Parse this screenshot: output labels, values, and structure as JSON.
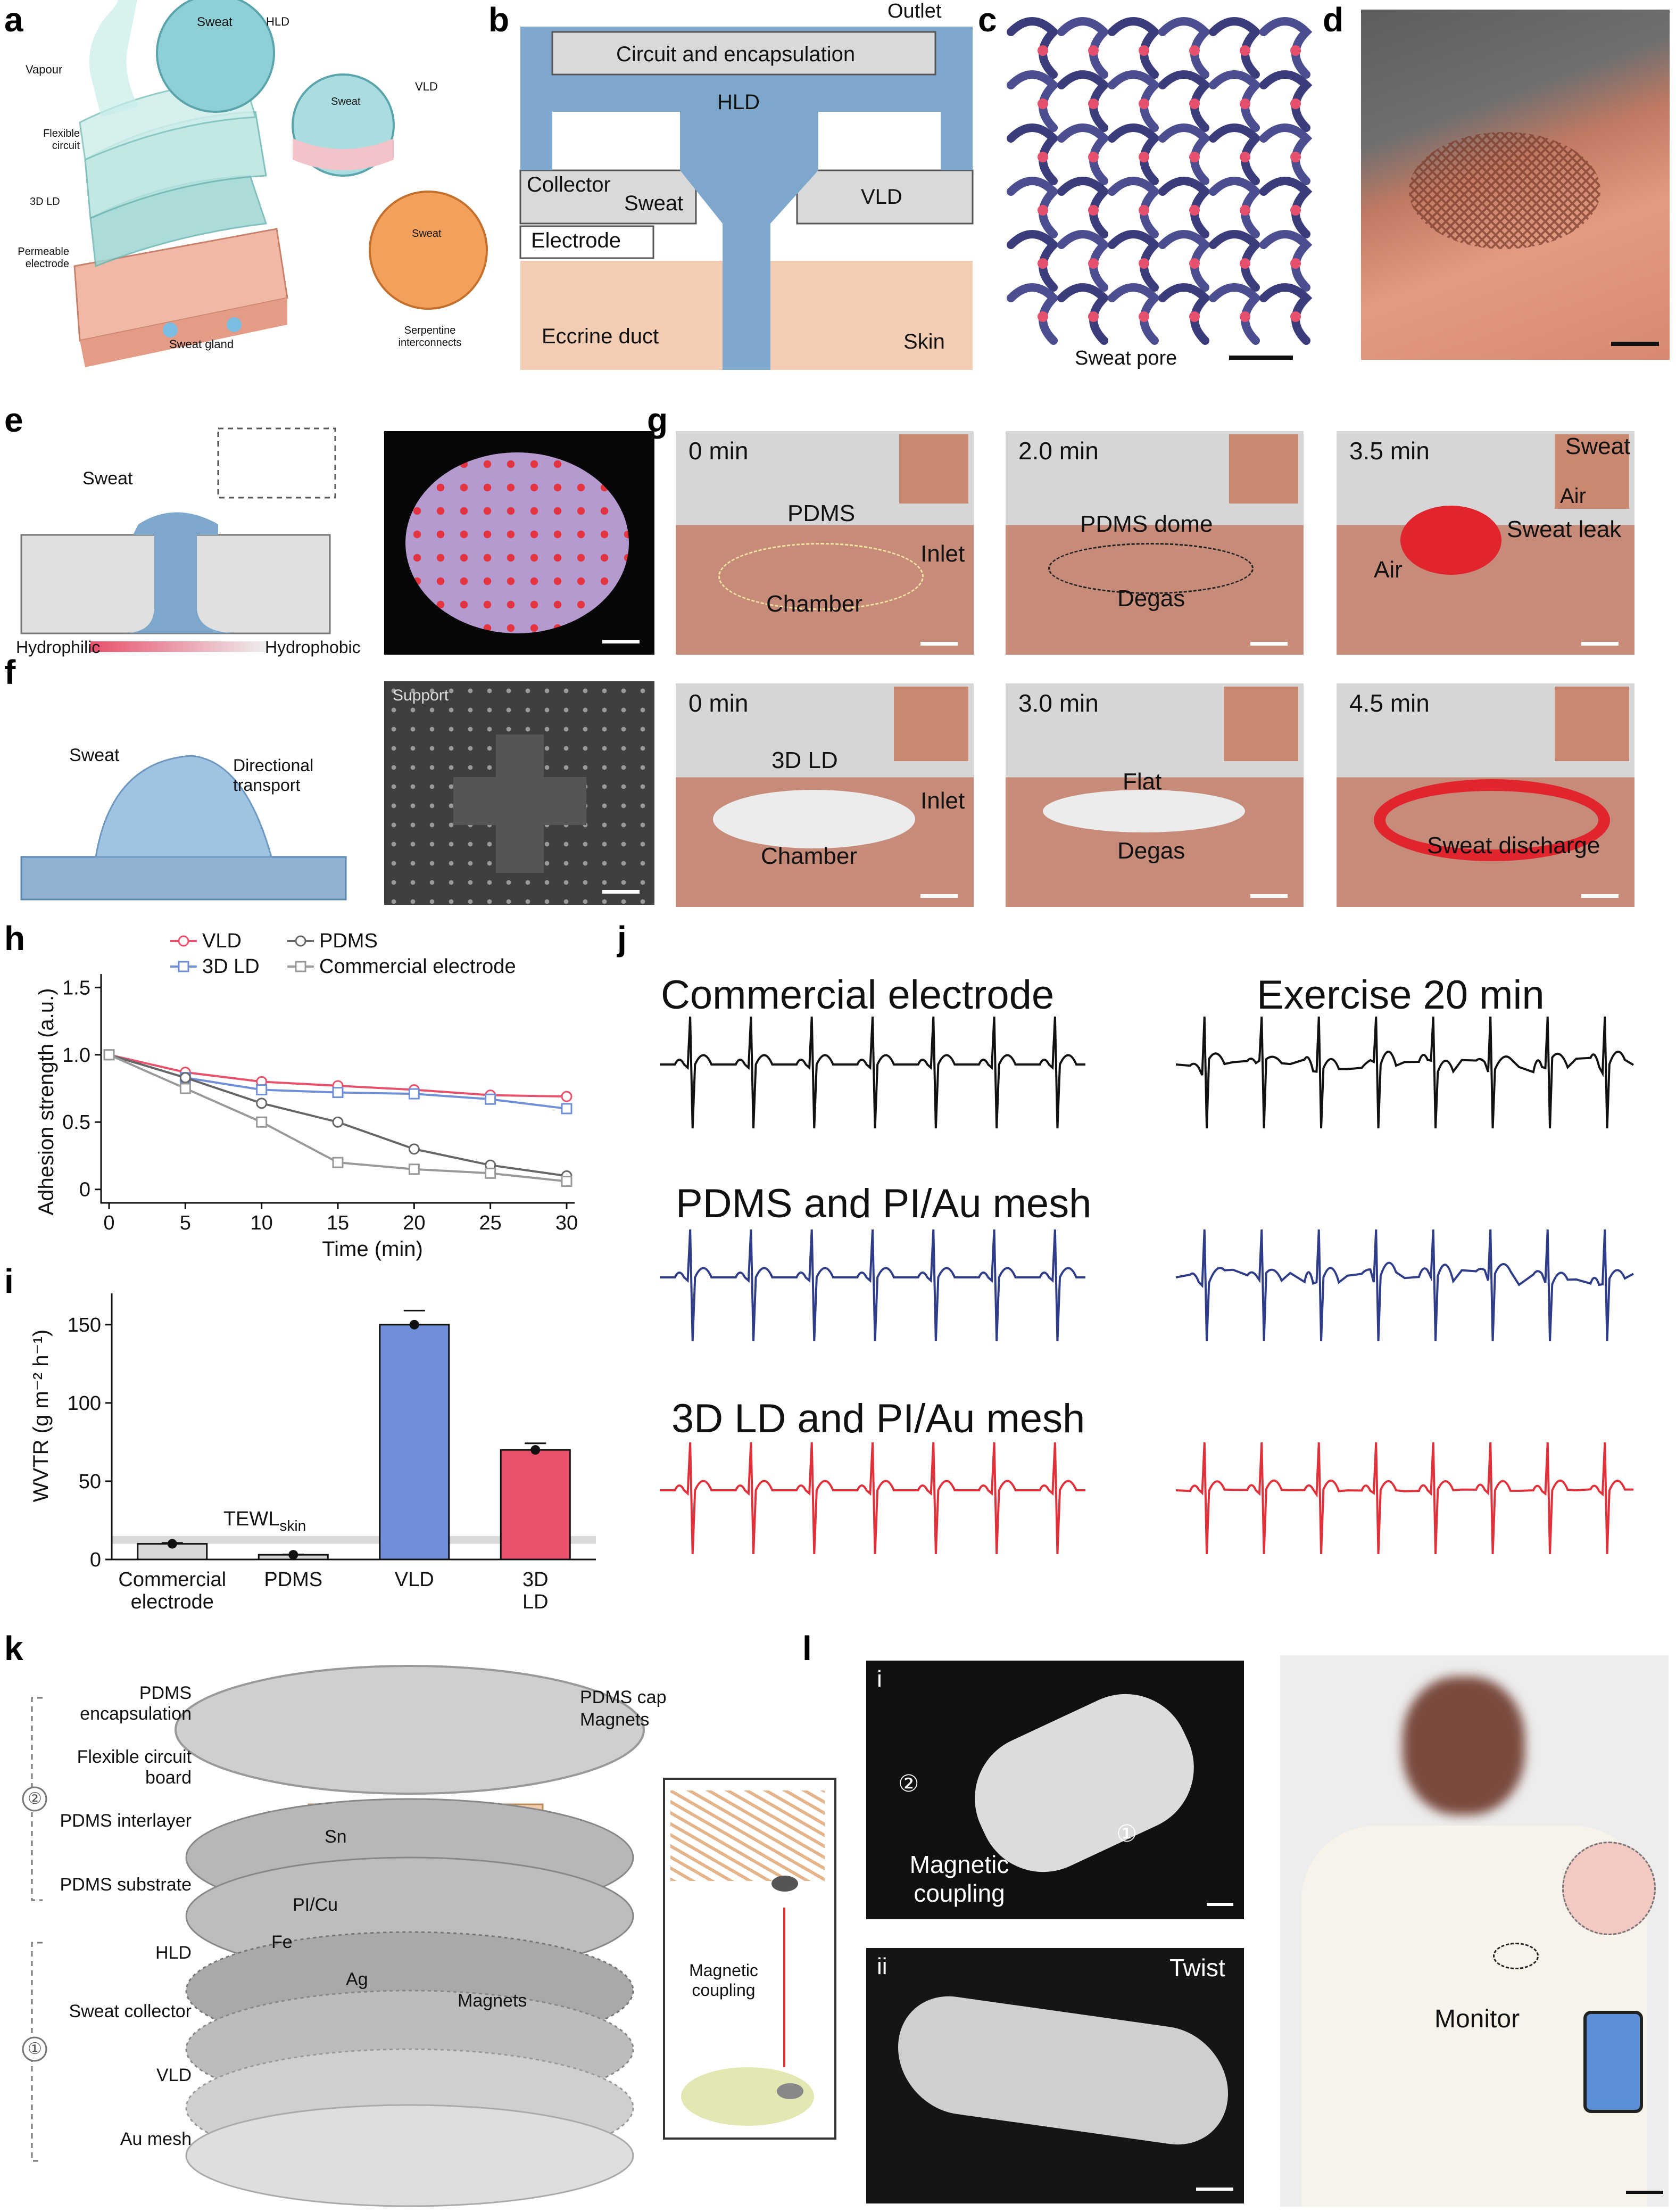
{
  "panel_letters": {
    "a": "a",
    "b": "b",
    "c": "c",
    "d": "d",
    "e": "e",
    "f": "f",
    "g": "g",
    "h": "h",
    "i": "i",
    "j": "j",
    "k": "k",
    "l": "l"
  },
  "panel_a": {
    "sweat_top": "Sweat",
    "hld": "HLD",
    "vapour": "Vapour",
    "sweat_mid": "Sweat",
    "vld": "VLD",
    "flexible_circuit": "Flexible circuit",
    "ld3d": "3D LD",
    "permeable_electrode": "Permeable electrode",
    "sweat_low": "Sweat",
    "sweat_gland": "Sweat gland",
    "serpentine": "Serpentine interconnects"
  },
  "panel_b": {
    "outlet": "Outlet",
    "circuit": "Circuit and encapsulation",
    "hld": "HLD",
    "collector": "Collector",
    "sweat": "Sweat",
    "vld": "VLD",
    "electrode": "Electrode",
    "eccrine": "Eccrine duct",
    "skin": "Skin"
  },
  "panel_c": {
    "sweat_pore": "Sweat pore"
  },
  "panel_e": {
    "sweat": "Sweat",
    "hydrophilic": "Hydrophilic",
    "hydrophobic": "Hydrophobic"
  },
  "panel_f": {
    "sweat": "Sweat",
    "directional": "Directional transport",
    "support": "Support"
  },
  "panel_g": {
    "row1": [
      {
        "time": "0 min",
        "l1": "PDMS",
        "l2": "Inlet",
        "l3": "Chamber"
      },
      {
        "time": "2.0 min",
        "l1": "PDMS dome",
        "l2": "Degas"
      },
      {
        "time": "3.5 min",
        "l1": "Sweat",
        "l2": "Air",
        "l3": "Sweat leak",
        "l4": "Air"
      }
    ],
    "row2": [
      {
        "time": "0 min",
        "l1": "3D LD",
        "l2": "Inlet",
        "l3": "Chamber"
      },
      {
        "time": "3.0 min",
        "l1": "Flat",
        "l2": "Degas"
      },
      {
        "time": "4.5 min",
        "l1": "Sweat discharge"
      }
    ]
  },
  "panel_j": {
    "t1": "Commercial electrode",
    "t2": "Exercise 20 min",
    "t3": "PDMS and PI/Au mesh",
    "t4": "3D LD and PI/Au mesh"
  },
  "panel_k": {
    "enc": "PDMS encapsulation",
    "fcb": "Flexible circuit board",
    "inter": "PDMS interlayer",
    "sub": "PDMS substrate",
    "hld": "HLD",
    "collector": "Sweat collector",
    "vld": "VLD",
    "au": "Au mesh",
    "cap": "PDMS cap",
    "magnets": "Magnets",
    "sn": "Sn",
    "picu": "PI/Cu",
    "fe": "Fe",
    "ag": "Ag",
    "magnets2": "Magnets",
    "mc": "Magnetic coupling",
    "n1": "①",
    "n2": "②"
  },
  "panel_l": {
    "i": "i",
    "ii": "ii",
    "twist": "Twist",
    "mc": "Magnetic coupling",
    "monitor": "Monitor",
    "n1": "①",
    "n2": "②"
  },
  "chart_data": [
    {
      "type": "line",
      "xlabel": "Time (min)",
      "ylabel": "Adhesion strength (a.u.)",
      "x": [
        0,
        5,
        10,
        15,
        20,
        25,
        30
      ],
      "xticks": [
        "0",
        "5",
        "10",
        "15",
        "20",
        "25",
        "30"
      ],
      "yticks": [
        "0",
        "0.5",
        "1.0",
        "1.5"
      ],
      "ylim": [
        -0.1,
        1.6
      ],
      "legend_position": "top",
      "series": [
        {
          "name": "VLD",
          "color": "#e8506b",
          "marker": "circle",
          "values": [
            1.0,
            0.87,
            0.8,
            0.77,
            0.74,
            0.7,
            0.69
          ]
        },
        {
          "name": "3D LD",
          "color": "#6f8fd8",
          "marker": "square",
          "values": [
            1.0,
            0.83,
            0.74,
            0.72,
            0.71,
            0.67,
            0.6
          ]
        },
        {
          "name": "PDMS",
          "color": "#666666",
          "marker": "circle",
          "values": [
            1.0,
            0.83,
            0.64,
            0.5,
            0.3,
            0.18,
            0.1
          ]
        },
        {
          "name": "Commercial electrode",
          "color": "#999999",
          "marker": "square",
          "values": [
            1.0,
            0.75,
            0.5,
            0.2,
            0.15,
            0.12,
            0.06
          ]
        }
      ]
    },
    {
      "type": "bar",
      "ylabel": "WVTR (g m⁻² h⁻¹)",
      "categories": [
        "Commercial electrode",
        "PDMS",
        "VLD",
        "3D LD"
      ],
      "values": [
        10,
        3,
        150,
        70
      ],
      "colors": [
        "#d8d8d8",
        "#d8d8d8",
        "#6f8fd8",
        "#e8506b"
      ],
      "yticks": [
        "0",
        "50",
        "100",
        "150"
      ],
      "ylim": [
        0,
        170
      ],
      "annotation": "TEWL",
      "annotation_sub": "skin",
      "tewl_band": [
        10,
        15
      ]
    }
  ]
}
